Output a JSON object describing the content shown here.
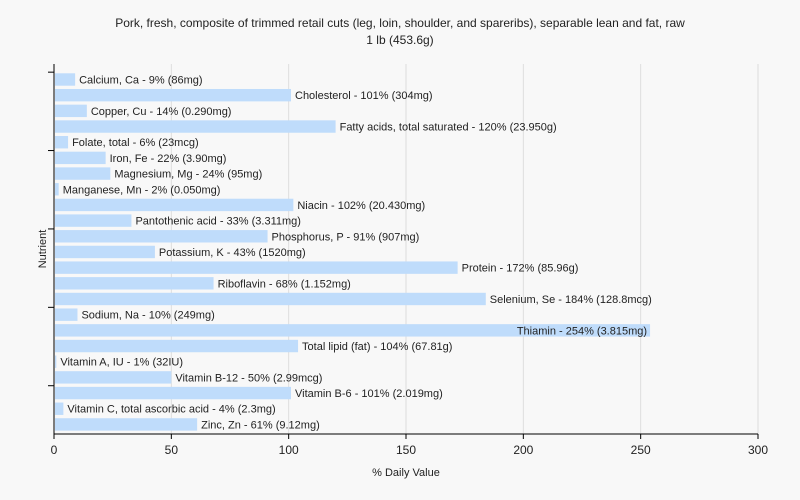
{
  "title_line1": "Pork, fresh, composite of trimmed retail cuts (leg, loin, shoulder, and spareribs), separable lean and fat, raw",
  "title_line2": "1 lb (453.6g)",
  "colors": {
    "bar": "#bfdcfb",
    "grid": "#dddddd",
    "axis": "#000000",
    "background": "#f8f8f8"
  },
  "chart_data": {
    "type": "bar",
    "orientation": "horizontal",
    "xlabel": "% Daily Value",
    "ylabel": "Nutrient",
    "xlim": [
      0,
      300
    ],
    "xticks": [
      0,
      50,
      100,
      150,
      200,
      250,
      300
    ],
    "grid": true,
    "categories": [
      "Calcium, Ca",
      "Cholesterol",
      "Copper, Cu",
      "Fatty acids, total saturated",
      "Folate, total",
      "Iron, Fe",
      "Magnesium, Mg",
      "Manganese, Mn",
      "Niacin",
      "Pantothenic acid",
      "Phosphorus, P",
      "Potassium, K",
      "Protein",
      "Riboflavin",
      "Selenium, Se",
      "Sodium, Na",
      "Thiamin",
      "Total lipid (fat)",
      "Vitamin A, IU",
      "Vitamin B-12",
      "Vitamin B-6",
      "Vitamin C, total ascorbic acid",
      "Zinc, Zn"
    ],
    "values": [
      9,
      101,
      14,
      120,
      6,
      22,
      24,
      2,
      102,
      33,
      91,
      43,
      172,
      68,
      184,
      10,
      254,
      104,
      1,
      50,
      101,
      4,
      61
    ],
    "labels": [
      "Calcium, Ca - 9% (86mg)",
      "Cholesterol - 101% (304mg)",
      "Copper, Cu - 14% (0.290mg)",
      "Fatty acids, total saturated - 120% (23.950g)",
      "Folate, total - 6% (23mcg)",
      "Iron, Fe - 22% (3.90mg)",
      "Magnesium, Mg - 24% (95mg)",
      "Manganese, Mn - 2% (0.050mg)",
      "Niacin - 102% (20.430mg)",
      "Pantothenic acid - 33% (3.311mg)",
      "Phosphorus, P - 91% (907mg)",
      "Potassium, K - 43% (1520mg)",
      "Protein - 172% (85.96g)",
      "Riboflavin - 68% (1.152mg)",
      "Selenium, Se - 184% (128.8mcg)",
      "Sodium, Na - 10% (249mg)",
      "Thiamin - 254% (3.815mg)",
      "Total lipid (fat) - 104% (67.81g)",
      "Vitamin A, IU - 1% (32IU)",
      "Vitamin B-12 - 50% (2.99mcg)",
      "Vitamin B-6 - 101% (2.019mg)",
      "Vitamin C, total ascorbic acid - 4% (2.3mg)",
      "Zinc, Zn - 61% (9.12mg)"
    ]
  }
}
